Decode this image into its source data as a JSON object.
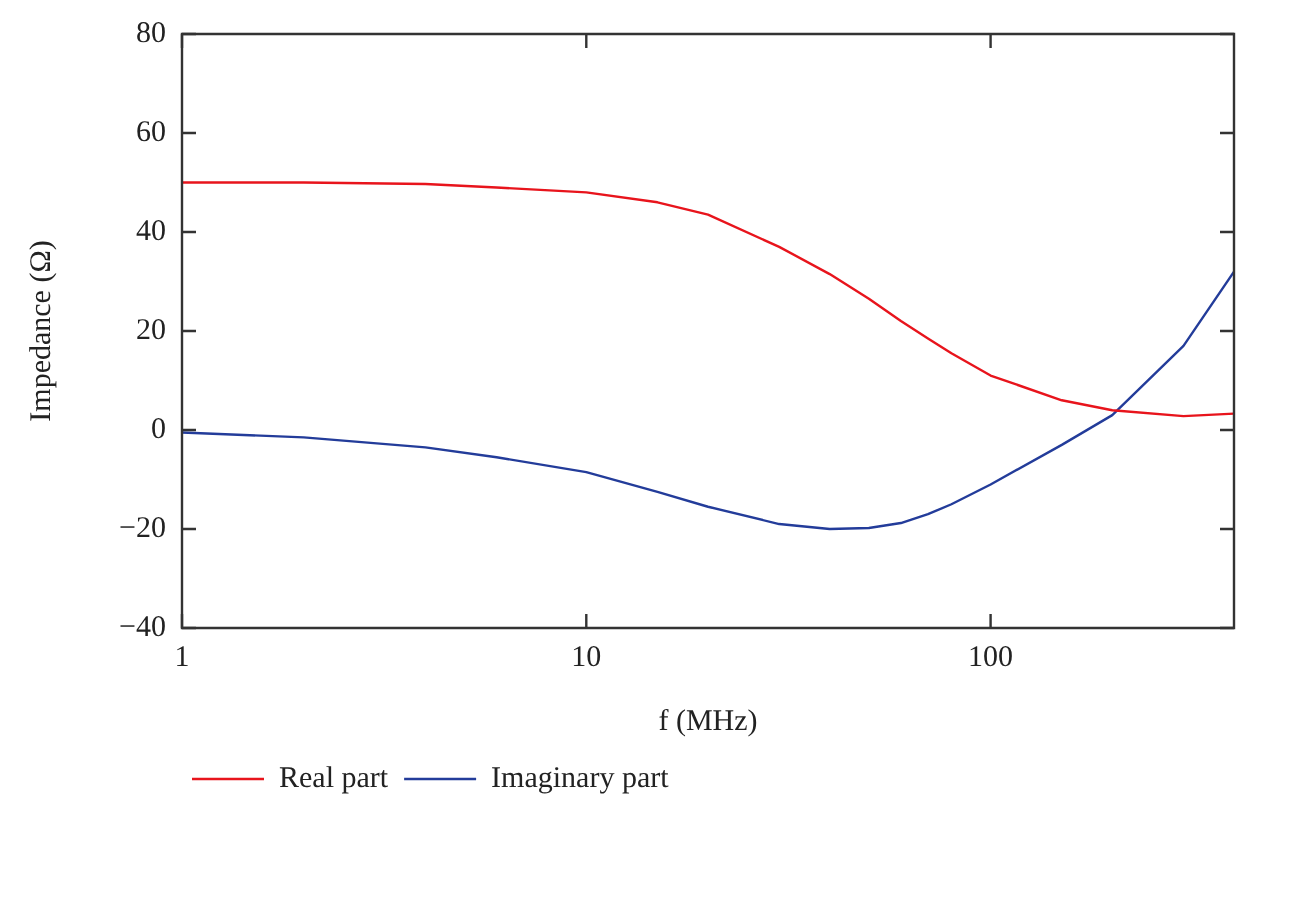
{
  "chart_data": {
    "type": "line",
    "xlabel": "f (MHz)",
    "ylabel": "Impedance (Ω)",
    "log": "x",
    "xlim": [
      1,
      400
    ],
    "xticks": [
      1,
      10,
      100
    ],
    "ylim": [
      -40,
      80
    ],
    "yticks": [
      -40,
      -20,
      0,
      20,
      40,
      60,
      80
    ],
    "grid": false,
    "legend": "bottom left",
    "marker": "none",
    "line_style": "solid",
    "x": [
      1,
      2,
      4,
      6,
      10,
      15,
      20,
      30,
      40,
      50,
      60,
      70,
      80,
      100,
      150,
      200,
      300,
      400
    ],
    "series": [
      {
        "name": "Real part",
        "color": "#e8141c",
        "values": [
          50,
          50,
          49.7,
          49,
          48,
          46,
          43.5,
          37,
          31.5,
          26.5,
          22,
          18.5,
          15.5,
          11,
          6,
          4,
          2.8,
          3.3
        ]
      },
      {
        "name": "Imaginary part",
        "color": "#233c9a",
        "values": [
          -0.5,
          -1.5,
          -3.5,
          -5.5,
          -8.5,
          -12.5,
          -15.5,
          -19,
          -20,
          -19.8,
          -18.8,
          -17,
          -15,
          -11,
          -3,
          3,
          17,
          32
        ]
      }
    ]
  }
}
